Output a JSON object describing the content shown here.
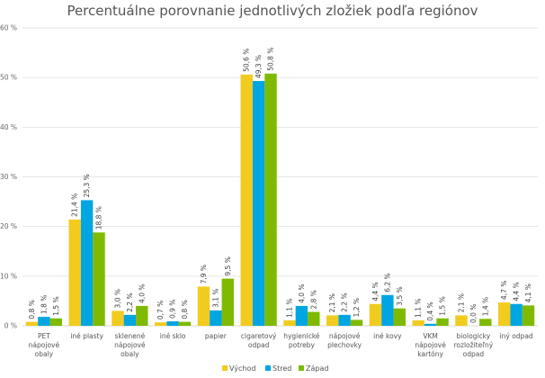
{
  "chart_data": {
    "type": "bar",
    "title": "Percentuálne porovnanie jednotlivých zložiek podľa regiónov",
    "xlabel": "",
    "ylabel": "",
    "ylim": [
      0,
      60
    ],
    "yticks": [
      0,
      10,
      20,
      30,
      40,
      50,
      60
    ],
    "ytick_labels": [
      "0 %",
      "10 %",
      "20 %",
      "30 %",
      "40 %",
      "50 %",
      "60 %"
    ],
    "grid": true,
    "legend_position": "bottom",
    "categories": [
      [
        "PET",
        "nápojové",
        "obaly"
      ],
      [
        "iné plasty"
      ],
      [
        "sklenené",
        "nápojové",
        "obaly"
      ],
      [
        "iné sklo"
      ],
      [
        "papier"
      ],
      [
        "cigaretový",
        "odpad"
      ],
      [
        "hygienické",
        "potreby"
      ],
      [
        "nápojové",
        "plechovky"
      ],
      [
        "iné kovy"
      ],
      [
        "VKM",
        "nápojové",
        "kartóny"
      ],
      [
        "biologicky",
        "rozložiteľný",
        "odpad"
      ],
      [
        "iný odpad"
      ]
    ],
    "series": [
      {
        "name": "Východ",
        "color": "#F2CB1F",
        "values": [
          0.8,
          21.4,
          3.0,
          0.7,
          7.9,
          50.6,
          1.1,
          2.1,
          4.4,
          1.1,
          2.1,
          4.7
        ],
        "labels": [
          "0,8 %",
          "21,4 %",
          "3,0 %",
          "0,7 %",
          "7,9 %",
          "50,6 %",
          "1,1 %",
          "2,1 %",
          "4,4 %",
          "1,1 %",
          "2,1 %",
          "4,7 %"
        ]
      },
      {
        "name": "Stred",
        "color": "#00A6E2",
        "values": [
          1.8,
          25.3,
          2.2,
          0.9,
          3.1,
          49.3,
          4.0,
          2.2,
          6.2,
          0.4,
          0.0,
          4.4
        ],
        "labels": [
          "1,8 %",
          "25,3 %",
          "2,2 %",
          "0,9 %",
          "3,1 %",
          "49,3 %",
          "4,0 %",
          "2,2 %",
          "6,2 %",
          "0,4 %",
          "0,0 %",
          "4,4 %"
        ]
      },
      {
        "name": "Západ",
        "color": "#7FBA00",
        "values": [
          1.5,
          18.8,
          4.0,
          0.8,
          9.5,
          50.8,
          2.8,
          1.2,
          3.5,
          1.5,
          1.4,
          4.1
        ],
        "labels": [
          "1,5 %",
          "18,8 %",
          "4,0 %",
          "0,8 %",
          "9,5 %",
          "50,8 %",
          "2,8 %",
          "1,2 %",
          "3,5 %",
          "1,5 %",
          "1,4 %",
          "4,1 %"
        ]
      }
    ]
  }
}
